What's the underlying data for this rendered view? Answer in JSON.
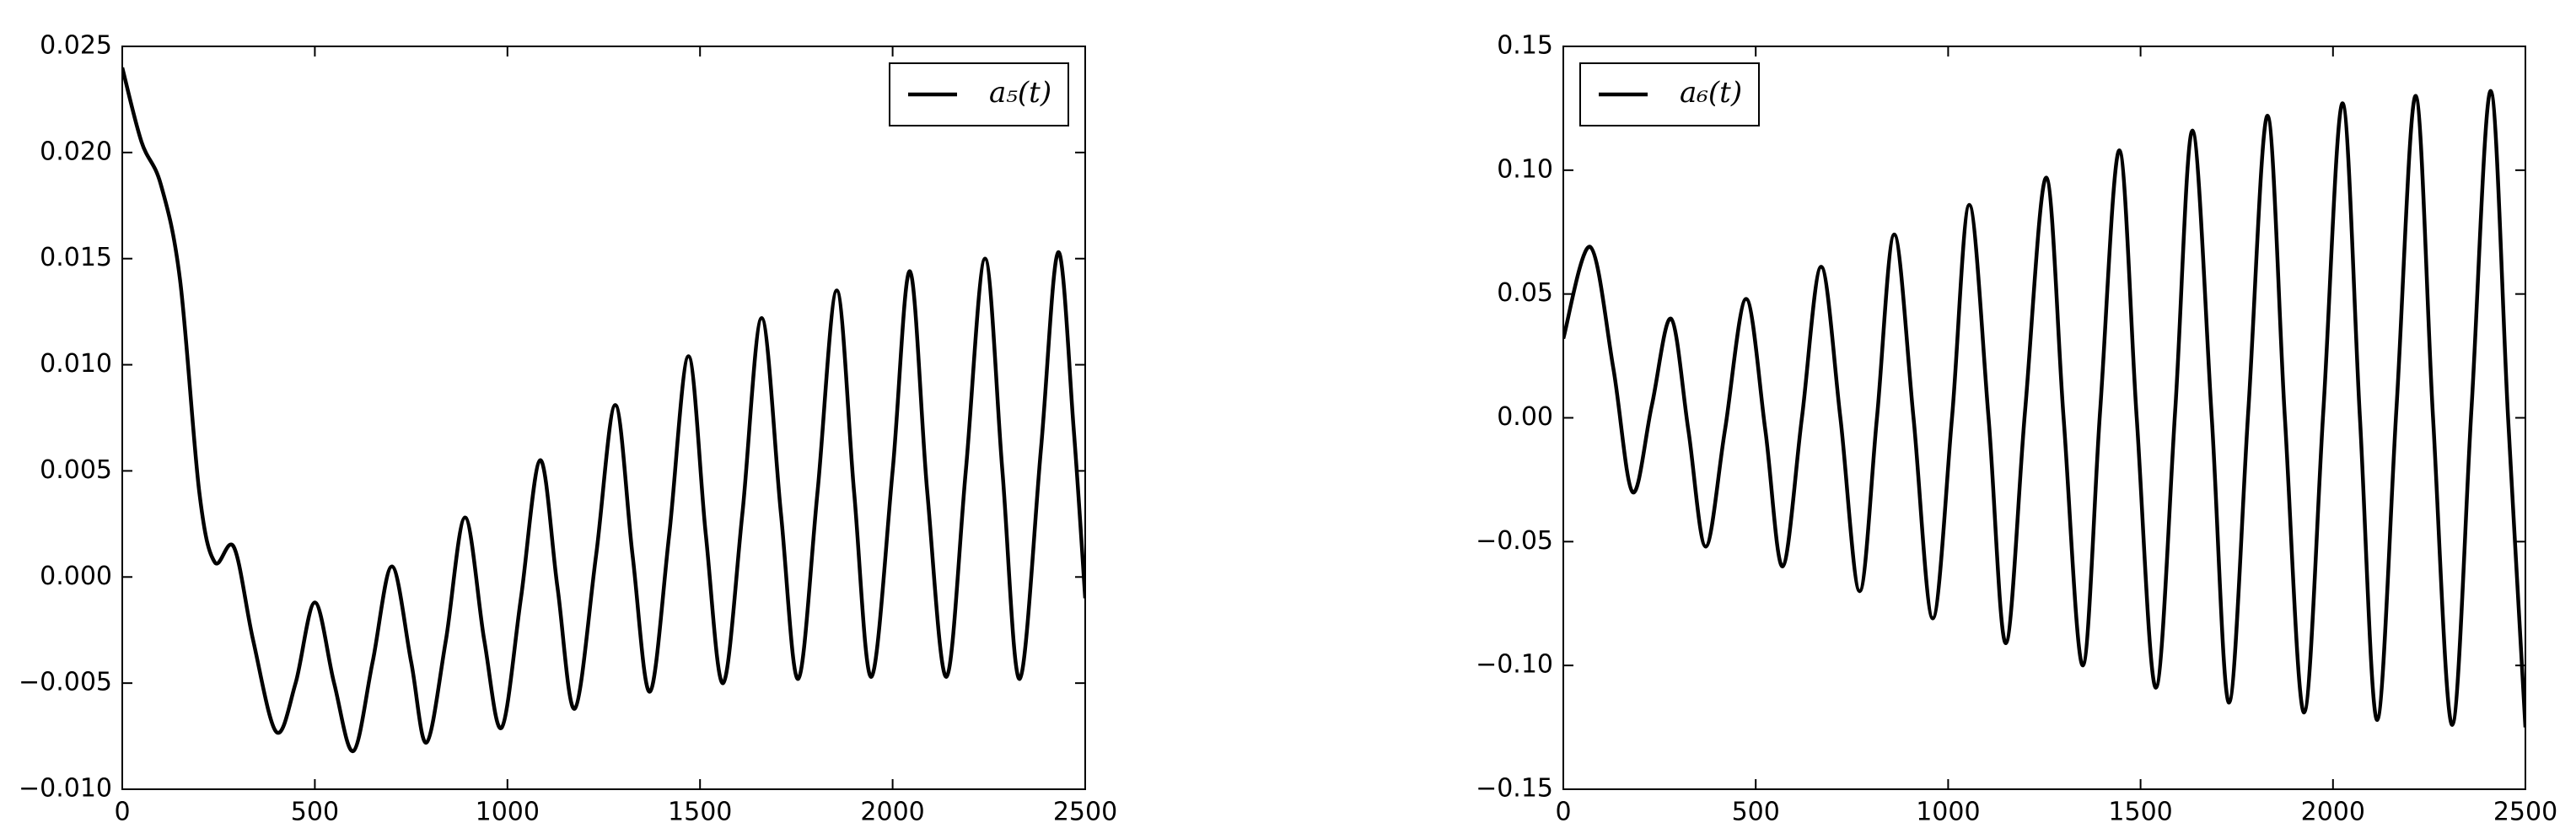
{
  "chart_data": [
    {
      "type": "line",
      "x": [
        0,
        50,
        100,
        150,
        200,
        240,
        290,
        340,
        400,
        450,
        500,
        550,
        600,
        650,
        700,
        750,
        790,
        840,
        890,
        940,
        985,
        1035,
        1085,
        1130,
        1175,
        1230,
        1280,
        1325,
        1370,
        1420,
        1470,
        1515,
        1560,
        1610,
        1660,
        1710,
        1755,
        1805,
        1855,
        1900,
        1945,
        2000,
        2045,
        2090,
        2140,
        2190,
        2240,
        2285,
        2330,
        2385,
        2430,
        2470,
        2500
      ],
      "series": [
        {
          "name": "a₅(t)",
          "color": "#000000",
          "values": [
            0.024,
            0.0205,
            0.0185,
            0.014,
            0.004,
            0.0007,
            0.0014,
            -0.003,
            -0.0073,
            -0.005,
            -0.0012,
            -0.005,
            -0.0082,
            -0.004,
            0.0005,
            -0.004,
            -0.0078,
            -0.003,
            0.0028,
            -0.003,
            -0.0071,
            -0.001,
            0.0055,
            -0.0005,
            -0.0062,
            0.001,
            0.0081,
            0.001,
            -0.0054,
            0.002,
            0.0104,
            0.002,
            -0.005,
            0.003,
            0.0122,
            0.003,
            -0.0048,
            0.004,
            0.0135,
            0.004,
            -0.0047,
            0.005,
            0.0144,
            0.004,
            -0.0047,
            0.005,
            0.015,
            0.005,
            -0.0048,
            0.006,
            0.0153,
            0.007,
            -0.001
          ]
        }
      ],
      "xlim": [
        0,
        2500
      ],
      "xticks": [
        0,
        500,
        1000,
        1500,
        2000,
        2500
      ],
      "ylim": [
        -0.01,
        0.025
      ],
      "yticks": [
        {
          "value": -0.01,
          "label": "−0.010"
        },
        {
          "value": -0.005,
          "label": "−0.005"
        },
        {
          "value": 0,
          "label": "0.000"
        },
        0.005,
        {
          "value": 0.01,
          "label": "0.010"
        },
        0.015,
        {
          "value": 0.02,
          "label": "0.020"
        },
        0.025
      ],
      "legend": "upper right"
    },
    {
      "type": "line",
      "x": [
        0,
        70,
        130,
        180,
        230,
        280,
        325,
        370,
        420,
        475,
        525,
        570,
        620,
        670,
        720,
        770,
        815,
        860,
        910,
        960,
        1010,
        1055,
        1105,
        1150,
        1200,
        1255,
        1300,
        1350,
        1395,
        1445,
        1490,
        1540,
        1590,
        1635,
        1685,
        1730,
        1780,
        1830,
        1875,
        1925,
        1975,
        2025,
        2070,
        2115,
        2165,
        2215,
        2260,
        2310,
        2360,
        2410,
        2455,
        2500
      ],
      "series": [
        {
          "name": "a₆(t)",
          "color": "#000000",
          "values": [
            0.032,
            0.069,
            0.02,
            -0.03,
            0.005,
            0.04,
            -0.005,
            -0.052,
            -0.005,
            0.048,
            -0.005,
            -0.06,
            0,
            0.061,
            0,
            -0.07,
            0,
            0.074,
            0,
            -0.081,
            0,
            0.086,
            0,
            -0.091,
            0.003,
            0.097,
            0,
            -0.1,
            0.003,
            0.108,
            0,
            -0.109,
            0.003,
            0.116,
            0,
            -0.115,
            0.003,
            0.122,
            0,
            -0.119,
            0.003,
            0.127,
            0,
            -0.122,
            0.004,
            0.13,
            0,
            -0.124,
            0.004,
            0.132,
            0,
            -0.125
          ]
        }
      ],
      "xlim": [
        0,
        2500
      ],
      "xticks": [
        0,
        500,
        1000,
        1500,
        2000,
        2500
      ],
      "ylim": [
        -0.15,
        0.15
      ],
      "yticks": [
        {
          "value": -0.15,
          "label": "−0.15"
        },
        {
          "value": -0.1,
          "label": "−0.10"
        },
        {
          "value": -0.05,
          "label": "−0.05"
        },
        {
          "value": 0,
          "label": "0.00"
        },
        0.05,
        {
          "value": 0.1,
          "label": "0.10"
        },
        0.15
      ],
      "legend": "upper left"
    }
  ]
}
